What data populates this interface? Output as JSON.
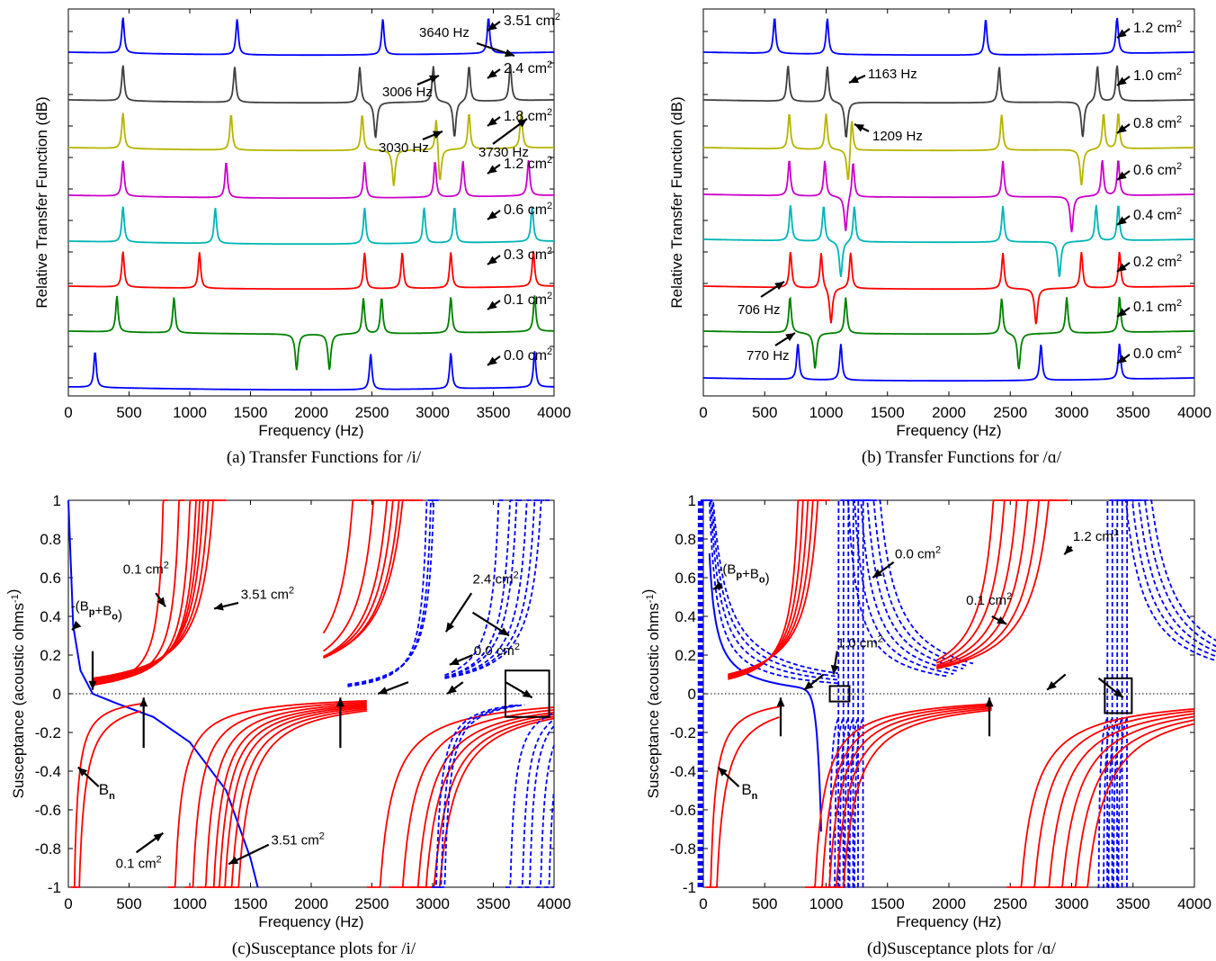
{
  "figure": {
    "panels": [
      {
        "id": "a",
        "caption": "(a) Transfer Functions for /i/",
        "xlabel": "Frequency (Hz)",
        "ylabel": "Relative Transfer Function (dB)",
        "xlim": [
          0,
          4000
        ],
        "xticks": [
          "0",
          "500",
          "1000",
          "1500",
          "2000",
          "2500",
          "3000",
          "3500",
          "4000"
        ],
        "yticks_labeled": false,
        "annotations": [
          "3640 Hz",
          "3006 Hz",
          "3030 Hz",
          "3730 Hz"
        ]
      },
      {
        "id": "b",
        "caption": "(b) Transfer Functions for /ɑ/",
        "xlabel": "Frequency (Hz)",
        "ylabel": "Relative Transfer Function (dB)",
        "xlim": [
          0,
          4000
        ],
        "xticks": [
          "0",
          "500",
          "1000",
          "1500",
          "2000",
          "2500",
          "3000",
          "3500",
          "4000"
        ],
        "yticks_labeled": false,
        "annotations": [
          "1163 Hz",
          "1209 Hz",
          "706 Hz",
          "770 Hz"
        ]
      },
      {
        "id": "c",
        "caption": "(c)Susceptance plots for /i/",
        "xlabel": "Frequency (Hz)",
        "ylabel": "Susceptance (acoustic ohms⁻¹)",
        "xlim": [
          0,
          4000
        ],
        "ylim": [
          -1,
          1
        ],
        "xticks": [
          "0",
          "500",
          "1000",
          "1500",
          "2000",
          "2500",
          "3000",
          "3500",
          "4000"
        ],
        "yticks": [
          "1",
          "0.8",
          "0.6",
          "0.4",
          "0.2",
          "0",
          "-0.2",
          "-0.4",
          "-0.6",
          "-0.8",
          "-1"
        ],
        "annotations": [
          "0.1 cm²",
          "3.51 cm²",
          "-(Bp+Bo)",
          "2.4 cm²",
          "0.0 cm²",
          "Bn",
          "0.1 cm²",
          "3.51 cm²"
        ]
      },
      {
        "id": "d",
        "caption": "(d)Susceptance plots for /ɑ/",
        "xlabel": "Frequency (Hz)",
        "ylabel": "Susceptance (acoustic ohms⁻¹)",
        "xlim": [
          0,
          4000
        ],
        "ylim": [
          -1,
          1
        ],
        "xticks": [
          "0",
          "500",
          "1000",
          "1500",
          "2000",
          "2500",
          "3000",
          "3500",
          "4000"
        ],
        "yticks": [
          "1",
          "0.8",
          "0.6",
          "0.4",
          "0.2",
          "0",
          "-0.2",
          "-0.4",
          "-0.6",
          "-0.8",
          "-1"
        ],
        "annotations": [
          "0.0 cm²",
          "-(Bp+Bo)",
          "1.2 cm¹",
          "0.1 cm²",
          "1.0 cm²",
          "Bn"
        ]
      }
    ]
  },
  "chart_data": [
    {
      "type": "line",
      "panel": "a",
      "title": "",
      "xlabel": "Frequency (Hz)",
      "ylabel": "Relative Transfer Function (dB)",
      "xlim": [
        0,
        4000
      ],
      "series": [
        {
          "name": "3.51 cm²",
          "color": "#0000ff",
          "peaks": [
            450,
            1390,
            2590,
            3460
          ],
          "dips": []
        },
        {
          "name": "2.4 cm²",
          "color": "#404040",
          "peaks": [
            450,
            1370,
            2400,
            3006,
            3300,
            3640
          ],
          "dips": [
            2530,
            3180
          ]
        },
        {
          "name": "1.8 cm²",
          "color": "#b5b500",
          "peaks": [
            450,
            1340,
            2420,
            3030,
            3300,
            3730
          ],
          "dips": [
            2680,
            3060
          ]
        },
        {
          "name": "1.2 cm²",
          "color": "#cc00cc",
          "peaks": [
            450,
            1300,
            2440,
            3020,
            3250,
            3790
          ],
          "dips": []
        },
        {
          "name": "0.6 cm²",
          "color": "#00b5b5",
          "peaks": [
            450,
            1210,
            2440,
            2930,
            3180,
            3820
          ],
          "dips": []
        },
        {
          "name": "0.3 cm²",
          "color": "#ff0000",
          "peaks": [
            450,
            1080,
            2440,
            2750,
            3150,
            3830
          ],
          "dips": []
        },
        {
          "name": "0.1 cm²",
          "color": "#008000",
          "peaks": [
            400,
            870,
            2430,
            2580,
            3150,
            3840
          ],
          "dips": [
            1880,
            2150
          ]
        },
        {
          "name": "0.0 cm²",
          "color": "#0000ff",
          "peaks": [
            220,
            2490,
            3150,
            3840
          ],
          "dips": []
        }
      ]
    },
    {
      "type": "line",
      "panel": "b",
      "title": "",
      "xlabel": "Frequency (Hz)",
      "ylabel": "Relative Transfer Function (dB)",
      "xlim": [
        0,
        4000
      ],
      "series": [
        {
          "name": "1.2 cm²",
          "color": "#0000ff",
          "peaks": [
            580,
            1010,
            2300,
            3370
          ],
          "dips": []
        },
        {
          "name": "1.0 cm²",
          "color": "#404040",
          "peaks": [
            690,
            1010,
            2410,
            3210,
            3370
          ],
          "dips": [
            1163,
            3090
          ]
        },
        {
          "name": "0.8 cm²",
          "color": "#b5b500",
          "peaks": [
            700,
            1000,
            1209,
            2430,
            3260,
            3380
          ],
          "dips": [
            1180,
            3080
          ]
        },
        {
          "name": "0.6 cm²",
          "color": "#cc00cc",
          "peaks": [
            700,
            990,
            1220,
            2440,
            3250,
            3380
          ],
          "dips": [
            1160,
            3000
          ]
        },
        {
          "name": "0.4 cm²",
          "color": "#00b5b5",
          "peaks": [
            710,
            980,
            1230,
            2440,
            3200,
            3380
          ],
          "dips": [
            1120,
            2900
          ]
        },
        {
          "name": "0.2 cm²",
          "color": "#ff0000",
          "peaks": [
            710,
            960,
            1200,
            2440,
            3080,
            3390
          ],
          "dips": [
            1040,
            2710
          ]
        },
        {
          "name": "0.1 cm²",
          "color": "#008000",
          "peaks": [
            706,
            1160,
            2430,
            2960,
            3390
          ],
          "dips": [
            910,
            2570
          ]
        },
        {
          "name": "0.0 cm²",
          "color": "#0000ff",
          "peaks": [
            770,
            1120,
            2750,
            3390
          ],
          "dips": []
        }
      ]
    },
    {
      "type": "line",
      "panel": "c",
      "title": "",
      "xlabel": "Frequency (Hz)",
      "ylabel": "Susceptance (acoustic ohms⁻¹)",
      "xlim": [
        0,
        4000
      ],
      "ylim": [
        -1,
        1
      ],
      "series": [
        {
          "name": "-(Bp+Bo)",
          "color": "#0000ff",
          "style": "solid",
          "x": [
            0,
            40,
            100,
            200,
            400,
            700,
            1000,
            1300,
            1500,
            1560
          ],
          "y": [
            1,
            0.35,
            0.12,
            0.0,
            -0.05,
            -0.12,
            -0.25,
            -0.5,
            -0.85,
            -1
          ]
        },
        {
          "name": "Bn (red family)",
          "color": "#ff0000",
          "style": "solid",
          "poles": [
            820,
            960,
            1060,
            1120,
            1160,
            1200,
            1250,
            1300,
            2460,
            2640,
            2760,
            2820,
            2880,
            2920
          ],
          "zeros_near": [
            620,
            2460
          ]
        },
        {
          "name": "-(Bp+Bo) area family (blue dashed)",
          "color": "#0000ff",
          "style": "dashed",
          "poles": [
            2990,
            3030,
            3060,
            3600,
            3700,
            3760,
            3850,
            3920,
            3980
          ]
        }
      ],
      "markers": [
        {
          "label": "0.0 cm²",
          "x": 3130,
          "y": 0.0
        }
      ]
    },
    {
      "type": "line",
      "panel": "d",
      "title": "",
      "xlabel": "Frequency (Hz)",
      "ylabel": "Susceptance (acoustic ohms⁻¹)",
      "xlim": [
        0,
        4000
      ],
      "ylim": [
        -1,
        1
      ],
      "series": [
        {
          "name": "-(Bp+Bo)",
          "color": "#0000ff",
          "style": "dashed",
          "poles_left": [
            0,
            20,
            40
          ],
          "poles": [
            1100,
            1140,
            1180,
            1220,
            1260,
            1300,
            3290,
            3330,
            3370,
            3410,
            3450
          ]
        },
        {
          "name": "Bn (red family)",
          "color": "#ff0000",
          "style": "solid",
          "poles": [
            830,
            880,
            930,
            980,
            1030,
            2470,
            2570,
            2680,
            2780,
            2880,
            2970
          ]
        }
      ],
      "markers": [
        {
          "label": "zero crossing",
          "x": 630,
          "y": 0.0
        },
        {
          "label": "zero crossing",
          "x": 2330,
          "y": 0.0
        }
      ]
    }
  ]
}
